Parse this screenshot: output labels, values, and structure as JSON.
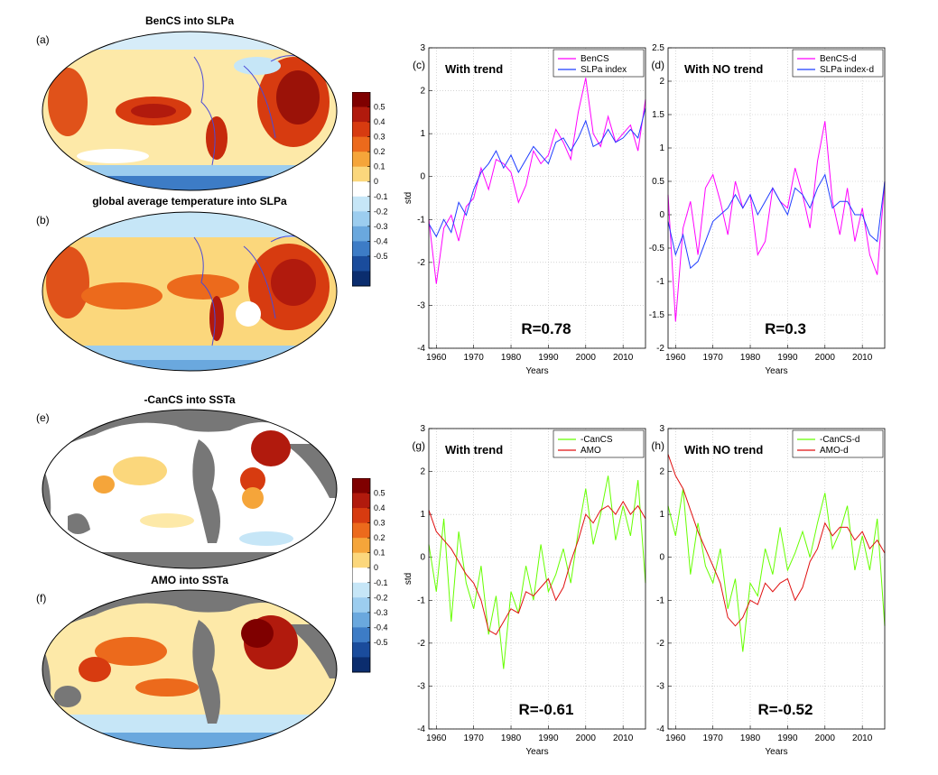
{
  "panels": {
    "a": {
      "label": "(a)",
      "title": "BenCS into SLPa"
    },
    "b": {
      "label": "(b)",
      "title": "global average temperature into SLPa"
    },
    "e": {
      "label": "(e)",
      "title": "-CanCS into SSTa"
    },
    "f": {
      "label": "(f)",
      "title": "AMO into SSTa"
    }
  },
  "colorbar": {
    "labels": [
      "0.5",
      "0.4",
      "0.3",
      "0.2",
      "0.1",
      "0",
      "-0.1",
      "-0.2",
      "-0.3",
      "-0.4",
      "-0.5"
    ],
    "colors": [
      "#7f0000",
      "#b11a0d",
      "#d73b10",
      "#ec6a1c",
      "#f5a53a",
      "#fbd77c",
      "#ffffff",
      "#c6e6f7",
      "#9ccdef",
      "#6aa8de",
      "#3d7cc6",
      "#1a4c9c",
      "#0b2d6e"
    ]
  },
  "chart_data": [
    {
      "type": "line",
      "id": "c",
      "panel_label": "(c)",
      "annotation": "With trend",
      "r_text": "R=0.78",
      "xlabel": "Years",
      "ylabel": "std",
      "xlim": [
        1958,
        2016
      ],
      "ylim": [
        -4,
        3
      ],
      "xticks": [
        1960,
        1970,
        1980,
        1990,
        2000,
        2010
      ],
      "yticks": [
        -4,
        -3,
        -2,
        -1,
        0,
        1,
        2,
        3
      ],
      "grid": true,
      "legend_position": "top-right",
      "series": [
        {
          "name": "BenCS",
          "color": "#ff00ff",
          "x": [
            1958,
            1960,
            1962,
            1964,
            1966,
            1968,
            1970,
            1972,
            1974,
            1976,
            1978,
            1980,
            1982,
            1984,
            1986,
            1988,
            1990,
            1992,
            1994,
            1996,
            1998,
            2000,
            2002,
            2004,
            2006,
            2008,
            2010,
            2012,
            2014,
            2016
          ],
          "values": [
            -1.0,
            -2.5,
            -1.2,
            -0.9,
            -1.5,
            -0.7,
            -0.5,
            0.2,
            -0.3,
            0.4,
            0.3,
            0.1,
            -0.6,
            -0.2,
            0.6,
            0.3,
            0.5,
            1.1,
            0.8,
            0.4,
            1.5,
            2.3,
            1.0,
            0.7,
            1.4,
            0.8,
            1.0,
            1.2,
            0.6,
            1.8
          ]
        },
        {
          "name": "SLPa index",
          "color": "#1f3dff",
          "x": [
            1958,
            1960,
            1962,
            1964,
            1966,
            1968,
            1970,
            1972,
            1974,
            1976,
            1978,
            1980,
            1982,
            1984,
            1986,
            1988,
            1990,
            1992,
            1994,
            1996,
            1998,
            2000,
            2002,
            2004,
            2006,
            2008,
            2010,
            2012,
            2014,
            2016
          ],
          "values": [
            -1.1,
            -1.4,
            -1.0,
            -1.3,
            -0.6,
            -0.9,
            -0.3,
            0.1,
            0.3,
            0.6,
            0.2,
            0.5,
            0.1,
            0.4,
            0.7,
            0.5,
            0.3,
            0.8,
            0.9,
            0.6,
            0.9,
            1.3,
            0.7,
            0.8,
            1.1,
            0.8,
            0.9,
            1.1,
            0.9,
            1.6
          ]
        }
      ]
    },
    {
      "type": "line",
      "id": "d",
      "panel_label": "(d)",
      "annotation": "With NO trend",
      "r_text": "R=0.3",
      "xlabel": "Years",
      "ylabel": "",
      "xlim": [
        1958,
        2016
      ],
      "ylim": [
        -2,
        2.5
      ],
      "xticks": [
        1960,
        1970,
        1980,
        1990,
        2000,
        2010
      ],
      "yticks": [
        -2,
        -1.5,
        -1,
        -0.5,
        0,
        0.5,
        1,
        1.5,
        2,
        2.5
      ],
      "grid": true,
      "legend_position": "top-right",
      "series": [
        {
          "name": "BenCS-d",
          "color": "#ff00ff",
          "x": [
            1958,
            1960,
            1962,
            1964,
            1966,
            1968,
            1970,
            1972,
            1974,
            1976,
            1978,
            1980,
            1982,
            1984,
            1986,
            1988,
            1990,
            1992,
            1994,
            1996,
            1998,
            2000,
            2002,
            2004,
            2006,
            2008,
            2010,
            2012,
            2014,
            2016
          ],
          "values": [
            0.3,
            -1.6,
            -0.2,
            0.2,
            -0.6,
            0.4,
            0.6,
            0.2,
            -0.3,
            0.5,
            0.1,
            0.3,
            -0.6,
            -0.4,
            0.4,
            0.2,
            0.1,
            0.7,
            0.3,
            -0.2,
            0.8,
            1.4,
            0.2,
            -0.3,
            0.4,
            -0.4,
            0.1,
            -0.6,
            -0.9,
            0.5
          ]
        },
        {
          "name": "SLPa index-d",
          "color": "#1f3dff",
          "x": [
            1958,
            1960,
            1962,
            1964,
            1966,
            1968,
            1970,
            1972,
            1974,
            1976,
            1978,
            1980,
            1982,
            1984,
            1986,
            1988,
            1990,
            1992,
            1994,
            1996,
            1998,
            2000,
            2002,
            2004,
            2006,
            2008,
            2010,
            2012,
            2014,
            2016
          ],
          "values": [
            -0.1,
            -0.6,
            -0.3,
            -0.8,
            -0.7,
            -0.4,
            -0.1,
            0.0,
            0.1,
            0.3,
            0.1,
            0.3,
            0.0,
            0.2,
            0.4,
            0.2,
            0.0,
            0.4,
            0.3,
            0.1,
            0.4,
            0.6,
            0.1,
            0.2,
            0.2,
            0.0,
            0.0,
            -0.3,
            -0.4,
            0.5
          ]
        }
      ]
    },
    {
      "type": "line",
      "id": "g",
      "panel_label": "(g)",
      "annotation": "With trend",
      "r_text": "R=-0.61",
      "xlabel": "Years",
      "ylabel": "std",
      "xlim": [
        1958,
        2016
      ],
      "ylim": [
        -4,
        3
      ],
      "xticks": [
        1960,
        1970,
        1980,
        1990,
        2000,
        2010
      ],
      "yticks": [
        -4,
        -3,
        -2,
        -1,
        0,
        1,
        2,
        3
      ],
      "grid": true,
      "legend_position": "top-right",
      "series": [
        {
          "name": "-CanCS",
          "color": "#66ff00",
          "x": [
            1958,
            1960,
            1962,
            1964,
            1966,
            1968,
            1970,
            1972,
            1974,
            1976,
            1978,
            1980,
            1982,
            1984,
            1986,
            1988,
            1990,
            1992,
            1994,
            1996,
            1998,
            2000,
            2002,
            2004,
            2006,
            2008,
            2010,
            2012,
            2014,
            2016
          ],
          "values": [
            0.3,
            -0.8,
            0.9,
            -1.5,
            0.6,
            -0.6,
            -1.2,
            -0.2,
            -1.8,
            -0.9,
            -2.6,
            -0.8,
            -1.3,
            -0.2,
            -1.0,
            0.3,
            -0.8,
            -0.4,
            0.2,
            -0.6,
            0.6,
            1.6,
            0.3,
            1.0,
            1.9,
            0.4,
            1.2,
            0.5,
            1.8,
            -0.6
          ]
        },
        {
          "name": "AMO",
          "color": "#e01010",
          "x": [
            1958,
            1960,
            1962,
            1964,
            1966,
            1968,
            1970,
            1972,
            1974,
            1976,
            1978,
            1980,
            1982,
            1984,
            1986,
            1988,
            1990,
            1992,
            1994,
            1996,
            1998,
            2000,
            2002,
            2004,
            2006,
            2008,
            2010,
            2012,
            2014,
            2016
          ],
          "values": [
            1.1,
            0.6,
            0.4,
            0.2,
            -0.1,
            -0.4,
            -0.6,
            -1.0,
            -1.7,
            -1.8,
            -1.5,
            -1.2,
            -1.3,
            -0.8,
            -0.9,
            -0.7,
            -0.5,
            -1.0,
            -0.7,
            -0.1,
            0.4,
            1.0,
            0.8,
            1.1,
            1.2,
            1.0,
            1.3,
            1.0,
            1.2,
            0.9
          ]
        }
      ]
    },
    {
      "type": "line",
      "id": "h",
      "panel_label": "(h)",
      "annotation": "With NO trend",
      "r_text": "R=-0.52",
      "xlabel": "Years",
      "ylabel": "",
      "xlim": [
        1958,
        2016
      ],
      "ylim": [
        -4,
        3
      ],
      "xticks": [
        1960,
        1970,
        1980,
        1990,
        2000,
        2010
      ],
      "yticks": [
        -4,
        -3,
        -2,
        -1,
        0,
        1,
        2,
        3
      ],
      "grid": true,
      "legend_position": "top-right",
      "series": [
        {
          "name": "-CanCS-d",
          "color": "#66ff00",
          "x": [
            1958,
            1960,
            1962,
            1964,
            1966,
            1968,
            1970,
            1972,
            1974,
            1976,
            1978,
            1980,
            1982,
            1984,
            1986,
            1988,
            1990,
            1992,
            1994,
            1996,
            1998,
            2000,
            2002,
            2004,
            2006,
            2008,
            2010,
            2012,
            2014,
            2016
          ],
          "values": [
            1.2,
            0.5,
            1.6,
            -0.4,
            0.8,
            -0.2,
            -0.6,
            0.2,
            -1.2,
            -0.5,
            -2.2,
            -0.6,
            -0.9,
            0.2,
            -0.4,
            0.7,
            -0.3,
            0.1,
            0.6,
            0.0,
            0.8,
            1.5,
            0.2,
            0.6,
            1.2,
            -0.3,
            0.5,
            -0.3,
            0.9,
            -1.6
          ]
        },
        {
          "name": "AMO-d",
          "color": "#e01010",
          "x": [
            1958,
            1960,
            1962,
            1964,
            1966,
            1968,
            1970,
            1972,
            1974,
            1976,
            1978,
            1980,
            1982,
            1984,
            1986,
            1988,
            1990,
            1992,
            1994,
            1996,
            1998,
            2000,
            2002,
            2004,
            2006,
            2008,
            2010,
            2012,
            2014,
            2016
          ],
          "values": [
            2.4,
            1.9,
            1.6,
            1.1,
            0.6,
            0.2,
            -0.2,
            -0.6,
            -1.4,
            -1.6,
            -1.4,
            -1.0,
            -1.1,
            -0.6,
            -0.8,
            -0.6,
            -0.5,
            -1.0,
            -0.7,
            -0.1,
            0.2,
            0.8,
            0.5,
            0.7,
            0.7,
            0.4,
            0.6,
            0.2,
            0.4,
            0.1
          ]
        }
      ]
    }
  ]
}
